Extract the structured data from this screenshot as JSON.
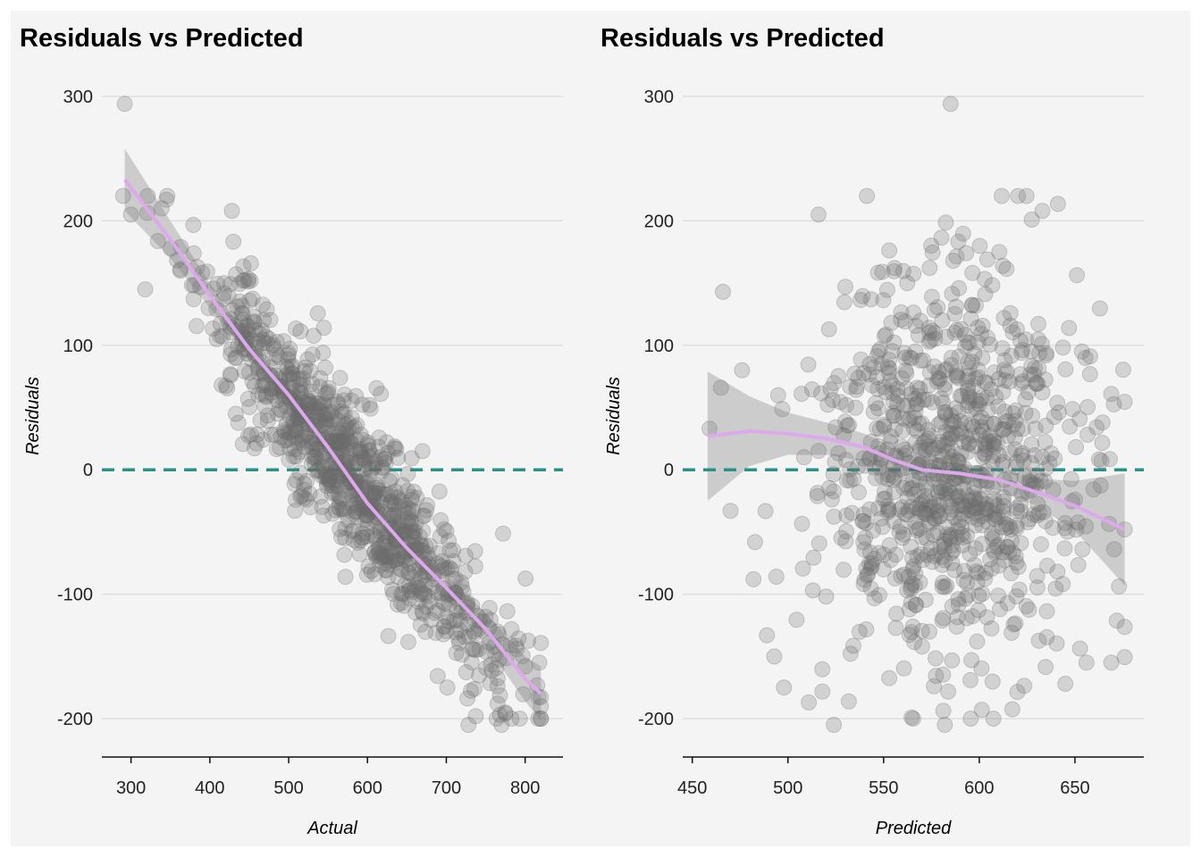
{
  "colors": {
    "background": "#f4f4f4",
    "grid": "#dedede",
    "points": "#6b6b6b",
    "smooth_line": "#dda8ec",
    "confidence_band": "#c8c8c8",
    "zero_line": "#2a9185"
  },
  "chart_data": [
    {
      "type": "scatter",
      "title": "Residuals vs Predicted",
      "xlabel": "Actual",
      "ylabel": "Residuals",
      "xlim": [
        263,
        848
      ],
      "ylim": [
        -228,
        313
      ],
      "xticks": [
        300,
        400,
        500,
        600,
        700,
        800
      ],
      "yticks": [
        -200,
        -100,
        0,
        100,
        200,
        300
      ],
      "grid": "horizontal",
      "legend": "none",
      "reference_line": {
        "y": 0,
        "style": "dashed"
      },
      "point_generation": {
        "count": 950,
        "seed": 11,
        "x_range": [
          290,
          820
        ],
        "x_center": 575,
        "x_spread": 95,
        "slope": -0.79,
        "intercept": 455,
        "noise_sd": 30
      },
      "extra_points": [
        {
          "x": 292,
          "y": 294
        },
        {
          "x": 300,
          "y": 205
        },
        {
          "x": 318,
          "y": 145
        },
        {
          "x": 345,
          "y": 217
        },
        {
          "x": 428,
          "y": 208
        },
        {
          "x": 415,
          "y": 68
        },
        {
          "x": 508,
          "y": -33
        },
        {
          "x": 572,
          "y": -86
        },
        {
          "x": 617,
          "y": 61
        },
        {
          "x": 728,
          "y": -205
        },
        {
          "x": 770,
          "y": -205
        },
        {
          "x": 775,
          "y": -196
        },
        {
          "x": 800,
          "y": -158
        },
        {
          "x": 818,
          "y": -155
        },
        {
          "x": 765,
          "y": -188
        }
      ],
      "smooth": {
        "x": [
          292,
          350,
          400,
          450,
          500,
          550,
          600,
          650,
          700,
          750,
          800,
          820
        ],
        "y": [
          233,
          185,
          140,
          97,
          60,
          18,
          -27,
          -63,
          -95,
          -128,
          -168,
          -180
        ],
        "band": [
          25,
          15,
          10,
          7,
          6,
          6,
          6,
          7,
          10,
          13,
          18,
          22
        ]
      }
    },
    {
      "type": "scatter",
      "title": "Residuals vs Predicted",
      "xlabel": "Predicted",
      "ylabel": "Residuals",
      "xlim": [
        445,
        686
      ],
      "ylim": [
        -228,
        313
      ],
      "xticks": [
        450,
        500,
        550,
        600,
        650
      ],
      "yticks": [
        -200,
        -100,
        0,
        100,
        200,
        300
      ],
      "grid": "horizontal",
      "legend": "none",
      "reference_line": {
        "y": 0,
        "style": "dashed"
      },
      "point_generation": {
        "count": 900,
        "seed": 23,
        "x_range": [
          458,
          676
        ],
        "x_center": 583,
        "x_spread": 33,
        "slope": 0,
        "intercept": 0,
        "noise_sd": 78
      },
      "extra_points": [
        {
          "x": 585,
          "y": 294
        },
        {
          "x": 466,
          "y": 143
        },
        {
          "x": 476,
          "y": 80
        },
        {
          "x": 465,
          "y": 66
        },
        {
          "x": 459,
          "y": 33
        },
        {
          "x": 470,
          "y": -33
        },
        {
          "x": 482,
          "y": -88
        },
        {
          "x": 489,
          "y": -133
        },
        {
          "x": 516,
          "y": 205
        },
        {
          "x": 524,
          "y": -205
        },
        {
          "x": 582,
          "y": -205
        },
        {
          "x": 676,
          "y": -48
        },
        {
          "x": 669,
          "y": 61
        },
        {
          "x": 669,
          "y": -155
        },
        {
          "x": 656,
          "y": -155
        },
        {
          "x": 633,
          "y": 208
        },
        {
          "x": 658,
          "y": 91
        },
        {
          "x": 645,
          "y": -172
        }
      ],
      "smooth": {
        "x": [
          458,
          480,
          500,
          520,
          540,
          555,
          570,
          590,
          610,
          630,
          650,
          676
        ],
        "y": [
          27,
          31,
          29,
          25,
          18,
          8,
          0,
          -3,
          -8,
          -18,
          -29,
          -48
        ],
        "band": [
          52,
          28,
          17,
          13,
          11,
          10,
          9,
          8,
          9,
          11,
          20,
          45
        ]
      }
    }
  ]
}
